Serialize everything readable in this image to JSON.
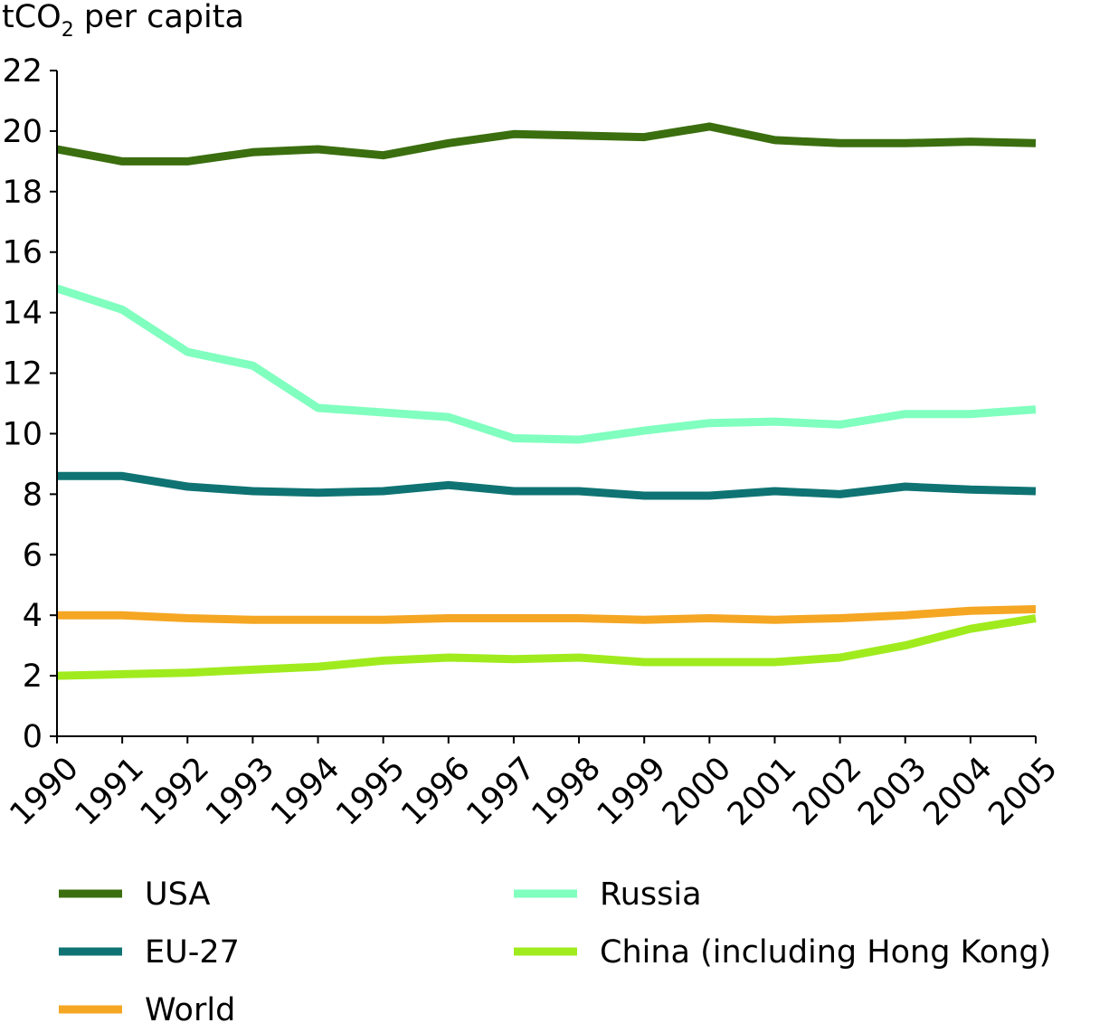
{
  "chart_data": {
    "type": "line",
    "title": "",
    "ylabel": {
      "main": "tCO",
      "subscript": "2",
      "suffix": " per capita"
    },
    "xlabel": "",
    "x": [
      "1990",
      "1991",
      "1992",
      "1993",
      "1994",
      "1995",
      "1996",
      "1997",
      "1998",
      "1999",
      "2000",
      "2001",
      "2002",
      "2003",
      "2004",
      "2005"
    ],
    "yticks": [
      "0",
      "2",
      "4",
      "6",
      "8",
      "10",
      "12",
      "14",
      "16",
      "18",
      "20",
      "22"
    ],
    "ylim": [
      0,
      22
    ],
    "grid": false,
    "legend_position": "bottom",
    "series": [
      {
        "name": "USA",
        "color": "#3b6e0f",
        "values": [
          19.4,
          19.0,
          19.0,
          19.3,
          19.4,
          19.2,
          19.6,
          19.9,
          19.85,
          19.8,
          20.15,
          19.7,
          19.6,
          19.6,
          19.65,
          19.6
        ]
      },
      {
        "name": "Russia",
        "color": "#80ffbf",
        "values": [
          14.8,
          14.1,
          12.7,
          12.25,
          10.85,
          10.7,
          10.55,
          9.85,
          9.8,
          10.1,
          10.35,
          10.4,
          10.3,
          10.65,
          10.65,
          10.8
        ]
      },
      {
        "name": "EU-27",
        "color": "#0f7373",
        "values": [
          8.6,
          8.6,
          8.25,
          8.1,
          8.05,
          8.1,
          8.3,
          8.1,
          8.1,
          7.95,
          7.95,
          8.1,
          8.0,
          8.25,
          8.15,
          8.1
        ]
      },
      {
        "name": "China (including Hong Kong)",
        "color": "#a0eb1e",
        "values": [
          2.0,
          2.05,
          2.1,
          2.2,
          2.3,
          2.5,
          2.6,
          2.55,
          2.6,
          2.45,
          2.45,
          2.45,
          2.6,
          3.0,
          3.55,
          3.9
        ]
      },
      {
        "name": "World",
        "color": "#f5a623",
        "values": [
          4.0,
          4.0,
          3.9,
          3.85,
          3.85,
          3.85,
          3.9,
          3.9,
          3.9,
          3.85,
          3.9,
          3.85,
          3.9,
          4.0,
          4.15,
          4.2
        ]
      }
    ],
    "legend": [
      {
        "name": "USA",
        "color": "#3b6e0f"
      },
      {
        "name": "Russia",
        "color": "#80ffbf"
      },
      {
        "name": "EU-27",
        "color": "#0f7373"
      },
      {
        "name": "China (including Hong Kong)",
        "color": "#a0eb1e"
      },
      {
        "name": "World",
        "color": "#f5a623"
      }
    ]
  }
}
